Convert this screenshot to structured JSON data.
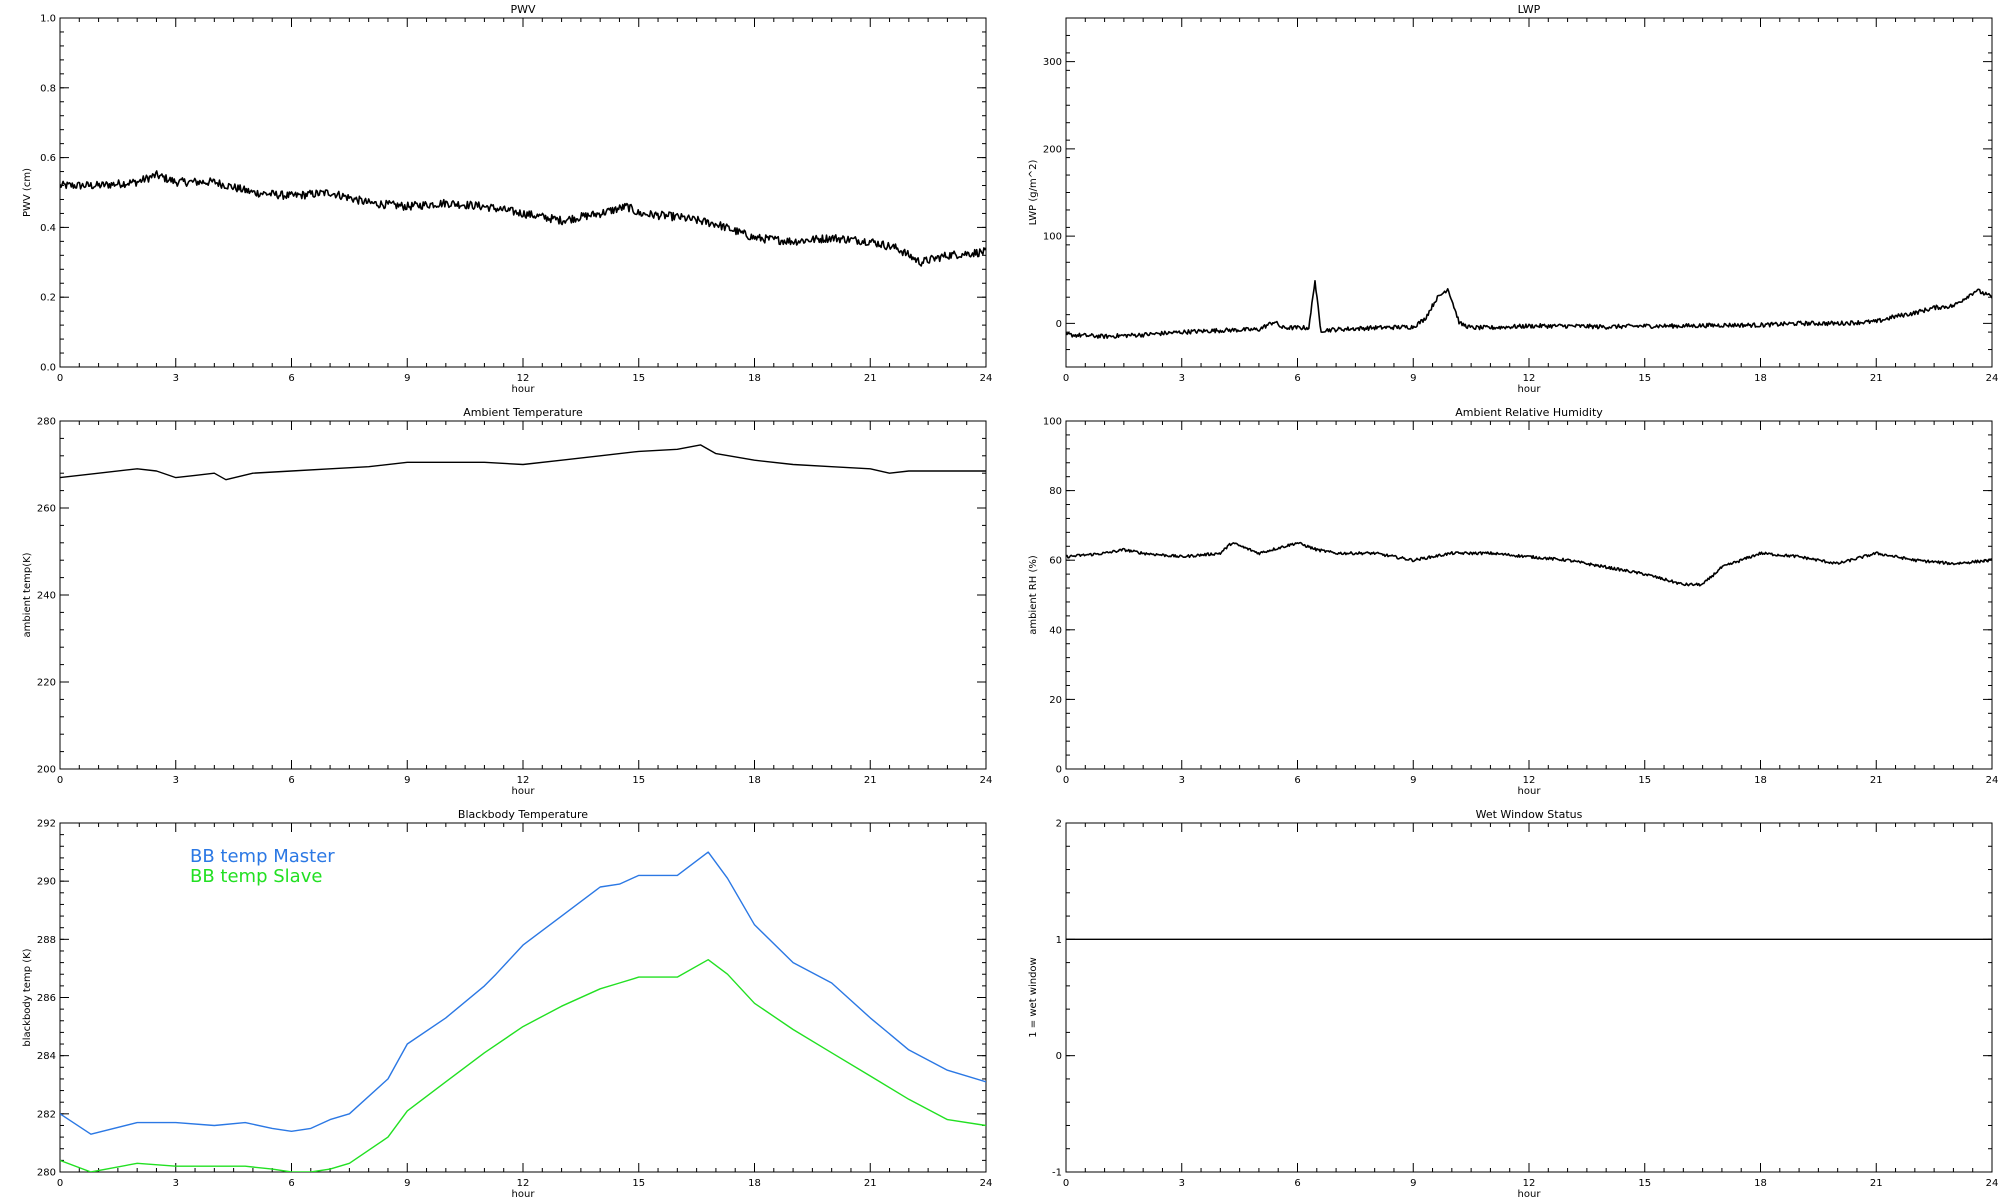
{
  "chart_data": [
    {
      "type": "line",
      "title": "PWV",
      "xlabel": "hour",
      "ylabel": "PWV (cm)",
      "xlim": [
        0,
        24
      ],
      "ylim": [
        0,
        1
      ],
      "xticks": [
        0,
        3,
        6,
        9,
        12,
        15,
        18,
        21,
        24
      ],
      "xtick_labels": [
        "0",
        "3",
        "6",
        "9",
        "12",
        "15",
        "18",
        "21",
        "24"
      ],
      "yticks": [
        0,
        0.2,
        0.4,
        0.6,
        0.8,
        1.0
      ],
      "ytick_labels": [
        "0.0",
        "0.2",
        "0.4",
        "0.6",
        "0.8",
        "1.0"
      ],
      "noise": 0.012,
      "series": [
        {
          "color": "#000000",
          "x": [
            0,
            1,
            2,
            2.5,
            3,
            4,
            5,
            6,
            7,
            8,
            9,
            10,
            11,
            12,
            13,
            14,
            14.7,
            15,
            16,
            17,
            18,
            19,
            20,
            21,
            21.7,
            22.3,
            23,
            24
          ],
          "y": [
            0.52,
            0.52,
            0.53,
            0.55,
            0.53,
            0.53,
            0.5,
            0.49,
            0.5,
            0.47,
            0.46,
            0.47,
            0.46,
            0.44,
            0.42,
            0.44,
            0.46,
            0.44,
            0.43,
            0.41,
            0.37,
            0.36,
            0.37,
            0.36,
            0.34,
            0.3,
            0.32,
            0.33
          ]
        }
      ]
    },
    {
      "type": "line",
      "title": "LWP",
      "xlabel": "hour",
      "ylabel": "LWP (g/m^2)",
      "xlim": [
        0,
        24
      ],
      "ylim": [
        -50,
        350
      ],
      "xticks": [
        0,
        3,
        6,
        9,
        12,
        15,
        18,
        21,
        24
      ],
      "xtick_labels": [
        "0",
        "3",
        "6",
        "9",
        "12",
        "15",
        "18",
        "21",
        "24"
      ],
      "yticks": [
        0,
        100,
        200,
        300
      ],
      "ytick_labels": [
        "0",
        "100",
        "200",
        "300"
      ],
      "noise": 2.5,
      "series": [
        {
          "color": "#000000",
          "x": [
            0,
            1,
            2,
            3,
            4,
            5,
            5.4,
            5.6,
            6,
            6.3,
            6.45,
            6.6,
            7,
            8,
            9,
            9.3,
            9.6,
            9.9,
            10.2,
            10.5,
            11,
            12,
            13,
            14,
            15,
            16,
            17,
            18,
            19,
            20,
            21,
            21.5,
            22,
            22.5,
            23,
            23.6,
            24
          ],
          "y": [
            -13,
            -15,
            -13,
            -10,
            -8,
            -7,
            2,
            -5,
            -5,
            -5,
            50,
            -8,
            -7,
            -5,
            -4,
            5,
            28,
            40,
            0,
            -5,
            -5,
            -3,
            -3,
            -4,
            -3,
            -3,
            -2,
            -2,
            0,
            0,
            2,
            8,
            12,
            18,
            20,
            38,
            30
          ]
        }
      ]
    },
    {
      "type": "line",
      "title": "Ambient Temperature",
      "xlabel": "hour",
      "ylabel": "ambient temp(K)",
      "xlim": [
        0,
        24
      ],
      "ylim": [
        200,
        280
      ],
      "xticks": [
        0,
        3,
        6,
        9,
        12,
        15,
        18,
        21,
        24
      ],
      "xtick_labels": [
        "0",
        "3",
        "6",
        "9",
        "12",
        "15",
        "18",
        "21",
        "24"
      ],
      "yticks": [
        200,
        220,
        240,
        260,
        280
      ],
      "ytick_labels": [
        "200",
        "220",
        "240",
        "260",
        "280"
      ],
      "noise": 0,
      "series": [
        {
          "color": "#000000",
          "x": [
            0,
            1,
            2,
            2.5,
            3,
            3.5,
            4,
            4.3,
            5,
            6,
            7,
            8,
            9,
            10,
            11,
            12,
            13,
            14,
            15,
            16,
            16.6,
            17,
            18,
            19,
            20,
            21,
            21.5,
            22,
            23,
            24
          ],
          "y": [
            267,
            268,
            269,
            268.5,
            267,
            267.5,
            268,
            266.5,
            268,
            268.5,
            269,
            269.5,
            270.5,
            270.5,
            270.5,
            270,
            271,
            272,
            273,
            273.5,
            274.5,
            272.5,
            271,
            270,
            269.5,
            269,
            268,
            268.5,
            268.5,
            268.5
          ]
        }
      ]
    },
    {
      "type": "line",
      "title": "Ambient Relative Humidity",
      "xlabel": "hour",
      "ylabel": "ambient RH (%)",
      "xlim": [
        0,
        24
      ],
      "ylim": [
        0,
        100
      ],
      "xticks": [
        0,
        3,
        6,
        9,
        12,
        15,
        18,
        21,
        24
      ],
      "xtick_labels": [
        "0",
        "3",
        "6",
        "9",
        "12",
        "15",
        "18",
        "21",
        "24"
      ],
      "yticks": [
        0,
        20,
        40,
        60,
        80,
        100
      ],
      "ytick_labels": [
        "0",
        "20",
        "40",
        "60",
        "80",
        "100"
      ],
      "noise": 0.4,
      "series": [
        {
          "color": "#000000",
          "x": [
            0,
            1,
            1.5,
            2,
            3,
            4,
            4.3,
            5,
            6,
            6.5,
            7,
            8,
            9,
            10,
            11,
            12,
            13,
            14,
            15,
            16,
            16.5,
            17,
            18,
            19,
            20,
            21,
            22,
            23,
            24
          ],
          "y": [
            61,
            62,
            63,
            62,
            61,
            62,
            65,
            62,
            65,
            63,
            62,
            62,
            60,
            62,
            62,
            61,
            60,
            58,
            56,
            53,
            53,
            58,
            62,
            61,
            59,
            62,
            60,
            59,
            60
          ]
        }
      ]
    },
    {
      "type": "line",
      "title": "Blackbody Temperature",
      "xlabel": "hour",
      "ylabel": "blackbody temp (K)",
      "xlim": [
        0,
        24
      ],
      "ylim": [
        280,
        292
      ],
      "xticks": [
        0,
        3,
        6,
        9,
        12,
        15,
        18,
        21,
        24
      ],
      "xtick_labels": [
        "0",
        "3",
        "6",
        "9",
        "12",
        "15",
        "18",
        "21",
        "24"
      ],
      "yticks": [
        280,
        282,
        284,
        286,
        288,
        290,
        292
      ],
      "ytick_labels": [
        "280",
        "282",
        "284",
        "286",
        "288",
        "290",
        "292"
      ],
      "legend": "top-left",
      "noise": 0,
      "series": [
        {
          "name": "BB temp Master",
          "color": "#2b78e4",
          "x": [
            0,
            0.8,
            2,
            3,
            4,
            4.8,
            5.5,
            6,
            6.5,
            7,
            7.5,
            8.5,
            9,
            10,
            11,
            11.3,
            12,
            13,
            14,
            14.5,
            15,
            16,
            16.8,
            17.3,
            18,
            19,
            20,
            21,
            22,
            23,
            24
          ],
          "y": [
            282,
            281.3,
            281.7,
            281.7,
            281.6,
            281.7,
            281.5,
            281.4,
            281.5,
            281.8,
            282,
            283.2,
            284.4,
            285.3,
            286.4,
            286.8,
            287.8,
            288.8,
            289.8,
            289.9,
            290.2,
            290.2,
            291,
            290.1,
            288.5,
            287.2,
            286.5,
            285.3,
            284.2,
            283.5,
            283.1
          ]
        },
        {
          "name": "BB temp Slave",
          "color": "#22e022",
          "x": [
            0,
            0.8,
            2,
            3,
            4,
            4.8,
            5.5,
            6,
            6.5,
            7,
            7.5,
            8.5,
            9,
            10,
            11,
            12,
            13,
            14,
            14.5,
            15,
            16,
            16.8,
            17.3,
            18,
            19,
            20,
            21,
            22,
            23,
            24
          ],
          "y": [
            280.4,
            280,
            280.3,
            280.2,
            280.2,
            280.2,
            280.1,
            280,
            280,
            280.1,
            280.3,
            281.2,
            282.1,
            283.1,
            284.1,
            285,
            285.7,
            286.3,
            286.5,
            286.7,
            286.7,
            287.3,
            286.8,
            285.8,
            284.9,
            284.1,
            283.3,
            282.5,
            281.8,
            281.6
          ]
        }
      ]
    },
    {
      "type": "line",
      "title": "Wet Window Status",
      "xlabel": "hour",
      "ylabel": "1 = wet window",
      "xlim": [
        0,
        24
      ],
      "ylim": [
        -1,
        2
      ],
      "xticks": [
        0,
        3,
        6,
        9,
        12,
        15,
        18,
        21,
        24
      ],
      "xtick_labels": [
        "0",
        "3",
        "6",
        "9",
        "12",
        "15",
        "18",
        "21",
        "24"
      ],
      "yticks": [
        -1,
        0,
        1,
        2
      ],
      "ytick_labels": [
        "-1",
        "0",
        "1",
        "2"
      ],
      "noise": 0,
      "series": [
        {
          "color": "#000000",
          "x": [
            0,
            24
          ],
          "y": [
            1,
            1
          ]
        }
      ]
    }
  ]
}
